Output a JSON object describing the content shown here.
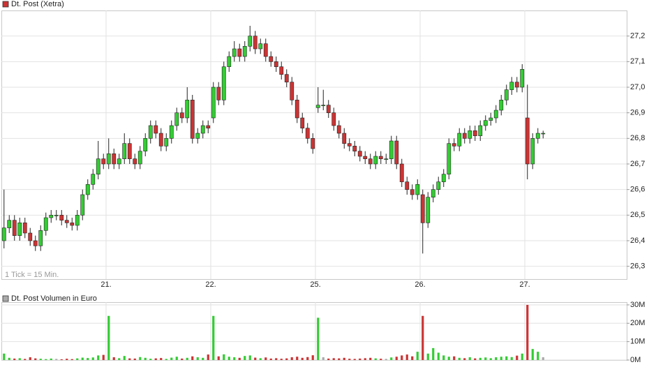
{
  "chart_data": [
    {
      "type": "candlestick",
      "legend": "Dt. Post (Xetra)",
      "annotation": "1 Tick = 15 Min.",
      "legend_color": "#cc3333",
      "up_color": "#33cc33",
      "down_color": "#cc3333",
      "grid": true,
      "categories": [
        null,
        null,
        null,
        null,
        null,
        null,
        null,
        null,
        null,
        null,
        null,
        null,
        null,
        null,
        null,
        null,
        null,
        null,
        null,
        null,
        "21.",
        null,
        null,
        null,
        null,
        null,
        null,
        null,
        null,
        null,
        null,
        null,
        null,
        null,
        null,
        null,
        null,
        null,
        null,
        null,
        "22.",
        null,
        null,
        null,
        null,
        null,
        null,
        null,
        null,
        null,
        null,
        null,
        null,
        null,
        null,
        null,
        null,
        null,
        null,
        null,
        "25.",
        null,
        null,
        null,
        null,
        null,
        null,
        null,
        null,
        null,
        null,
        null,
        null,
        null,
        null,
        null,
        null,
        null,
        null,
        null,
        "26.",
        null,
        null,
        null,
        null,
        null,
        null,
        null,
        null,
        null,
        null,
        null,
        null,
        null,
        null,
        null,
        null,
        null,
        null,
        null,
        "27.",
        null,
        null,
        null
      ],
      "open": [
        26.4,
        26.45,
        26.48,
        26.42,
        26.47,
        26.43,
        26.4,
        26.38,
        26.44,
        26.49,
        26.5,
        26.5,
        26.48,
        26.47,
        26.46,
        26.5,
        26.58,
        26.62,
        26.66,
        26.72,
        26.7,
        26.74,
        26.7,
        26.72,
        26.78,
        26.72,
        26.7,
        26.75,
        26.8,
        26.85,
        26.82,
        26.77,
        26.8,
        26.85,
        26.9,
        26.88,
        26.95,
        26.8,
        26.82,
        26.85,
        26.88,
        27.0,
        26.95,
        27.08,
        27.12,
        27.15,
        27.12,
        27.16,
        27.2,
        27.15,
        27.17,
        27.12,
        27.1,
        27.08,
        27.05,
        27.02,
        26.95,
        26.88,
        26.84,
        26.8,
        26.92,
        26.93,
        26.93,
        26.9,
        26.85,
        26.82,
        26.78,
        26.77,
        26.75,
        26.73,
        26.72,
        26.7,
        26.73,
        26.72,
        26.72,
        26.79,
        26.7,
        26.63,
        26.6,
        26.58,
        26.58,
        26.47,
        26.57,
        26.6,
        26.63,
        26.66,
        26.78,
        26.77,
        26.82,
        26.8,
        26.83,
        26.81,
        26.85,
        26.87,
        26.88,
        26.91,
        26.95,
        26.99,
        27.02,
        27.0,
        26.88,
        26.7,
        26.8,
        26.82
      ],
      "high": [
        26.6,
        26.5,
        26.5,
        26.49,
        26.49,
        26.45,
        26.42,
        26.46,
        26.51,
        26.52,
        26.52,
        26.52,
        26.5,
        26.49,
        26.52,
        26.6,
        26.64,
        26.68,
        26.79,
        26.74,
        26.8,
        26.76,
        26.74,
        26.82,
        26.8,
        26.74,
        26.77,
        26.82,
        26.87,
        26.87,
        26.84,
        26.82,
        26.87,
        26.92,
        26.92,
        27.0,
        26.97,
        26.84,
        26.87,
        26.87,
        27.02,
        27.02,
        27.1,
        27.14,
        27.18,
        27.17,
        27.18,
        27.24,
        27.22,
        27.19,
        27.19,
        27.14,
        27.12,
        27.1,
        27.07,
        27.04,
        26.97,
        26.9,
        26.86,
        26.82,
        27.0,
        26.99,
        26.95,
        26.92,
        26.87,
        26.84,
        26.8,
        26.79,
        26.77,
        26.75,
        26.74,
        26.75,
        26.75,
        26.74,
        26.81,
        26.81,
        26.72,
        26.65,
        26.62,
        26.64,
        26.6,
        26.59,
        26.62,
        26.65,
        26.68,
        26.8,
        26.8,
        26.84,
        26.84,
        26.85,
        26.85,
        26.87,
        26.89,
        26.9,
        26.93,
        26.97,
        27.01,
        27.04,
        27.04,
        27.09,
        27.01,
        26.82,
        26.84,
        26.83
      ],
      "low": [
        26.37,
        26.43,
        26.4,
        26.4,
        26.41,
        26.38,
        26.36,
        26.36,
        26.42,
        26.47,
        26.48,
        26.46,
        26.45,
        26.44,
        26.44,
        26.48,
        26.56,
        26.6,
        26.64,
        26.68,
        26.68,
        26.68,
        26.68,
        26.7,
        26.7,
        26.68,
        26.68,
        26.73,
        26.78,
        26.8,
        26.75,
        26.75,
        26.78,
        26.83,
        26.86,
        26.86,
        26.78,
        26.78,
        26.8,
        26.82,
        26.86,
        26.93,
        26.93,
        27.06,
        27.1,
        27.1,
        27.1,
        27.14,
        27.13,
        27.13,
        27.1,
        27.08,
        27.06,
        27.03,
        27.0,
        26.93,
        26.86,
        26.82,
        26.78,
        26.74,
        26.9,
        26.91,
        26.88,
        26.83,
        26.8,
        26.76,
        26.75,
        26.73,
        26.71,
        26.7,
        26.68,
        26.68,
        26.7,
        26.7,
        26.7,
        26.68,
        26.61,
        26.58,
        26.56,
        26.56,
        26.35,
        26.45,
        26.55,
        26.58,
        26.61,
        26.64,
        26.75,
        26.75,
        26.78,
        26.78,
        26.79,
        26.79,
        26.83,
        26.85,
        26.86,
        26.89,
        26.93,
        26.97,
        26.98,
        26.98,
        26.64,
        26.68,
        26.78,
        26.8
      ],
      "close": [
        26.45,
        26.48,
        26.42,
        26.47,
        26.43,
        26.4,
        26.38,
        26.44,
        26.49,
        26.5,
        26.5,
        26.48,
        26.47,
        26.46,
        26.5,
        26.58,
        26.62,
        26.66,
        26.72,
        26.7,
        26.74,
        26.7,
        26.72,
        26.78,
        26.72,
        26.7,
        26.75,
        26.8,
        26.85,
        26.82,
        26.77,
        26.8,
        26.85,
        26.9,
        26.88,
        26.95,
        26.8,
        26.82,
        26.85,
        26.84,
        27.0,
        26.95,
        27.08,
        27.12,
        27.15,
        27.12,
        27.16,
        27.2,
        27.15,
        27.17,
        27.12,
        27.1,
        27.08,
        27.05,
        27.02,
        26.95,
        26.88,
        26.84,
        26.8,
        26.76,
        26.93,
        26.93,
        26.9,
        26.85,
        26.82,
        26.78,
        26.77,
        26.75,
        26.73,
        26.72,
        26.7,
        26.73,
        26.72,
        26.72,
        26.79,
        26.7,
        26.63,
        26.6,
        26.58,
        26.62,
        26.47,
        26.57,
        26.6,
        26.63,
        26.66,
        26.78,
        26.77,
        26.82,
        26.8,
        26.83,
        26.81,
        26.85,
        26.87,
        26.88,
        26.91,
        26.95,
        26.99,
        27.02,
        27.0,
        27.07,
        26.7,
        26.8,
        26.82,
        26.82
      ],
      "ylim": [
        26.25,
        27.3
      ],
      "yticks": [
        {
          "value": 26.3,
          "label": "26,3"
        },
        {
          "value": 26.4,
          "label": "26,4"
        },
        {
          "value": 26.5,
          "label": "26,5"
        },
        {
          "value": 26.6,
          "label": "26,6"
        },
        {
          "value": 26.7,
          "label": "26,7"
        },
        {
          "value": 26.8,
          "label": "26,8"
        },
        {
          "value": 26.9,
          "label": "26,9"
        },
        {
          "value": 27.0,
          "label": "27,0"
        },
        {
          "value": 27.1,
          "label": "27,1"
        },
        {
          "value": 27.2,
          "label": "27,2"
        }
      ]
    },
    {
      "type": "bar",
      "legend": "Dt. Post Volumen in Euro",
      "legend_color": "#aaaaaa",
      "flat_color": "#aaaaaa",
      "grid": true,
      "values": [
        3.5,
        1.2,
        0.8,
        1.0,
        0.6,
        1.5,
        0.9,
        0.7,
        0.5,
        0.8,
        0.6,
        0.4,
        0.7,
        0.5,
        0.9,
        1.3,
        1.1,
        1.4,
        2.5,
        2.8,
        24,
        1.5,
        1.0,
        2.2,
        0.9,
        0.8,
        1.6,
        1.2,
        0.7,
        0.9,
        1.1,
        0.6,
        1.3,
        1.8,
        0.8,
        1.2,
        2.0,
        1.5,
        1.2,
        3.0,
        24,
        2.0,
        3.1,
        1.8,
        1.5,
        1.2,
        2.2,
        2.5,
        1.3,
        1.0,
        1.4,
        0.8,
        1.0,
        0.7,
        0.9,
        1.5,
        1.8,
        1.2,
        1.6,
        2.6,
        23,
        1.5,
        0.8,
        1.0,
        0.9,
        1.2,
        0.7,
        0.6,
        0.8,
        1.0,
        1.2,
        0.9,
        0.7,
        0.6,
        1.4,
        1.8,
        2.5,
        3.0,
        2.0,
        4.5,
        24,
        3.5,
        6.5,
        4.0,
        2.5,
        1.8,
        2.0,
        1.2,
        1.0,
        1.5,
        0.9,
        1.2,
        1.4,
        1.0,
        1.5,
        1.8,
        2.0,
        1.6,
        2.4,
        3.5,
        30,
        6.0,
        4.5,
        1.5
      ],
      "ylim": [
        0,
        31.5
      ],
      "yticks": [
        {
          "value": 0,
          "label": "0M"
        },
        {
          "value": 10,
          "label": "10M"
        },
        {
          "value": 20,
          "label": "20M"
        },
        {
          "value": 30,
          "label": "30M"
        }
      ]
    }
  ]
}
